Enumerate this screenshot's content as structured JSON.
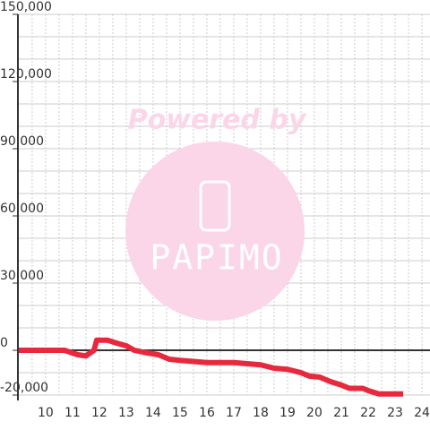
{
  "chart_data": {
    "type": "line",
    "x": [
      9,
      10.7,
      11.2,
      11.5,
      11.8,
      11.9,
      12.3,
      12.7,
      13.0,
      13.3,
      13.7,
      14.2,
      14.6,
      15.0,
      15.5,
      16.0,
      17.0,
      17.5,
      18.0,
      18.5,
      19.0,
      19.5,
      19.8,
      20.2,
      20.6,
      21.0,
      21.3,
      21.8,
      22.0,
      22.4,
      22.8,
      23.3
    ],
    "series": [
      {
        "color": "#e8283c",
        "values": [
          0,
          0,
          -2000,
          -2500,
          0,
          4500,
          4500,
          3000,
          2000,
          0,
          -1000,
          -2000,
          -4000,
          -4500,
          -5000,
          -5500,
          -5500,
          -6000,
          -6500,
          -8000,
          -8500,
          -10000,
          -11500,
          -12000,
          -14000,
          -15500,
          -17000,
          -17000,
          -18000,
          -19500,
          -19500,
          -19500
        ]
      }
    ],
    "xlim": [
      8.97,
      24.3
    ],
    "xticks": [
      10,
      11,
      12,
      13,
      14,
      15,
      16,
      17,
      18,
      19,
      20,
      21,
      22,
      23,
      24
    ],
    "xminorticks": [
      9.5,
      10.5,
      11.5,
      12.5,
      13.5,
      14.5,
      15.5,
      16.5,
      17.5,
      18.5,
      19.5,
      20.5,
      21.5,
      22.5,
      23.5
    ],
    "ylim": [
      -20000,
      150000
    ],
    "yticks": [
      {
        "value": -20000,
        "label": "-20,000"
      },
      0,
      {
        "value": 30000,
        "label": "30,000"
      },
      {
        "value": 60000,
        "label": "60,000"
      },
      {
        "value": 90000,
        "label": "90,000"
      },
      {
        "value": 120000,
        "label": "120,000"
      },
      {
        "value": 150000,
        "label": "150,000"
      }
    ],
    "yminorticks": [
      -10000,
      10000,
      20000,
      40000,
      50000,
      70000,
      80000,
      100000,
      110000,
      130000,
      140000
    ],
    "grid": true,
    "watermark": {
      "title": "Powered by",
      "brand": "PAPIMO"
    }
  }
}
